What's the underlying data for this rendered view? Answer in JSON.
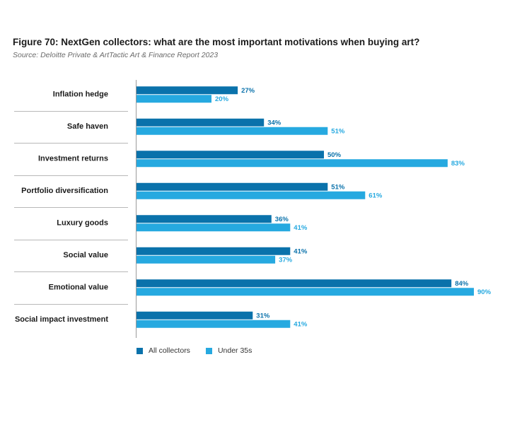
{
  "title": "Figure 70: NextGen collectors: what are the most important motivations when buying art?",
  "subtitle": "Source: Deloitte Private & ArtTactic Art & Finance Report 2023",
  "colors": {
    "all": "#0a72ab",
    "under35": "#26a9e0",
    "axis": "#9a9a9a",
    "separator": "#b8b8b8"
  },
  "chart_data": {
    "type": "bar",
    "orientation": "horizontal",
    "categories": [
      "Inflation hedge",
      "Safe haven",
      "Investment returns",
      "Portfolio diversification",
      "Luxury goods",
      "Social value",
      "Emotional value",
      "Social impact investment"
    ],
    "series": [
      {
        "name": "All collectors",
        "values": [
          27,
          34,
          50,
          51,
          36,
          41,
          84,
          31
        ],
        "labels": [
          "27%",
          "34%",
          "50%",
          "51%",
          "36%",
          "41%",
          "84%",
          "31%"
        ]
      },
      {
        "name": "Under 35s",
        "values": [
          20,
          51,
          83,
          61,
          41,
          37,
          90,
          41
        ],
        "labels": [
          "20%",
          "51%",
          "83%",
          "61%",
          "41%",
          "37%",
          "90%",
          "41%"
        ]
      }
    ],
    "xlim": [
      0,
      100
    ],
    "grid": false,
    "legend": "bottom-left"
  }
}
